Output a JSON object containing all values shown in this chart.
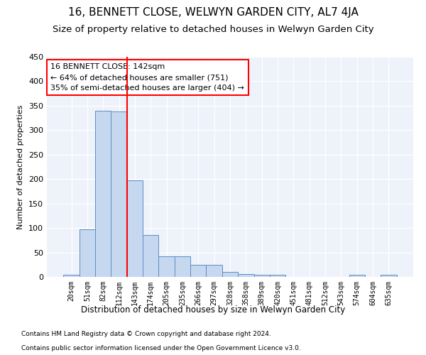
{
  "title": "16, BENNETT CLOSE, WELWYN GARDEN CITY, AL7 4JA",
  "subtitle": "Size of property relative to detached houses in Welwyn Garden City",
  "xlabel": "Distribution of detached houses by size in Welwyn Garden City",
  "ylabel": "Number of detached properties",
  "categories": [
    "20sqm",
    "51sqm",
    "82sqm",
    "112sqm",
    "143sqm",
    "174sqm",
    "205sqm",
    "235sqm",
    "266sqm",
    "297sqm",
    "328sqm",
    "358sqm",
    "389sqm",
    "420sqm",
    "451sqm",
    "481sqm",
    "512sqm",
    "543sqm",
    "574sqm",
    "604sqm",
    "635sqm"
  ],
  "values": [
    5,
    97,
    340,
    338,
    198,
    85,
    42,
    42,
    25,
    24,
    10,
    6,
    4,
    5,
    0,
    0,
    0,
    0,
    5,
    0,
    5
  ],
  "bar_color": "#c5d8f0",
  "bar_edge_color": "#5b8ec4",
  "vline_x_index": 3.5,
  "vline_color": "red",
  "annotation_line1": "16 BENNETT CLOSE: 142sqm",
  "annotation_line2": "← 64% of detached houses are smaller (751)",
  "annotation_line3": "35% of semi-detached houses are larger (404) →",
  "annotation_box_color": "white",
  "annotation_box_edge_color": "red",
  "footer1": "Contains HM Land Registry data © Crown copyright and database right 2024.",
  "footer2": "Contains public sector information licensed under the Open Government Licence v3.0.",
  "ylim": [
    0,
    450
  ],
  "yticks": [
    0,
    50,
    100,
    150,
    200,
    250,
    300,
    350,
    400,
    450
  ],
  "background_color": "#eef2fb",
  "title_fontsize": 11,
  "subtitle_fontsize": 9.5,
  "title_fontweight": "normal",
  "footer_fontsize": 6.5
}
